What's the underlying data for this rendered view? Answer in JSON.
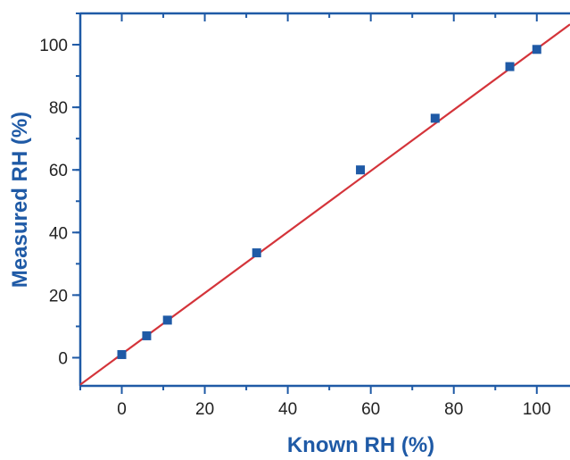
{
  "chart_data": {
    "type": "scatter",
    "title": "",
    "xlabel": "Known RH (%)",
    "ylabel": "Measured RH (%)",
    "xlim": [
      -10,
      108
    ],
    "ylim": [
      -9,
      110
    ],
    "xticks": [
      0,
      20,
      40,
      60,
      80,
      100
    ],
    "yticks": [
      0,
      20,
      40,
      60,
      80,
      100
    ],
    "xtick_labels": [
      "0",
      "20",
      "40",
      "60",
      "80",
      "100"
    ],
    "ytick_labels": [
      "0",
      "20",
      "40",
      "60",
      "80",
      "100"
    ],
    "series": [
      {
        "points": [
          {
            "x": 0,
            "y": 1
          },
          {
            "x": 6,
            "y": 7
          },
          {
            "x": 11,
            "y": 12
          },
          {
            "x": 32.5,
            "y": 33.5
          },
          {
            "x": 57.5,
            "y": 60
          },
          {
            "x": 75.5,
            "y": 76.5
          },
          {
            "x": 93.5,
            "y": 93
          },
          {
            "x": 100,
            "y": 98.5
          }
        ],
        "marker": "square",
        "color": "#1f5aa6"
      }
    ],
    "fit_line": {
      "points": [
        {
          "x": -10,
          "y": -8.6
        },
        {
          "x": 108,
          "y": 106.5
        }
      ],
      "color": "#d4343a"
    },
    "axis_color": "#1f5aa6",
    "label_color": "#1f5aa6",
    "grid": false,
    "legend": "none"
  }
}
